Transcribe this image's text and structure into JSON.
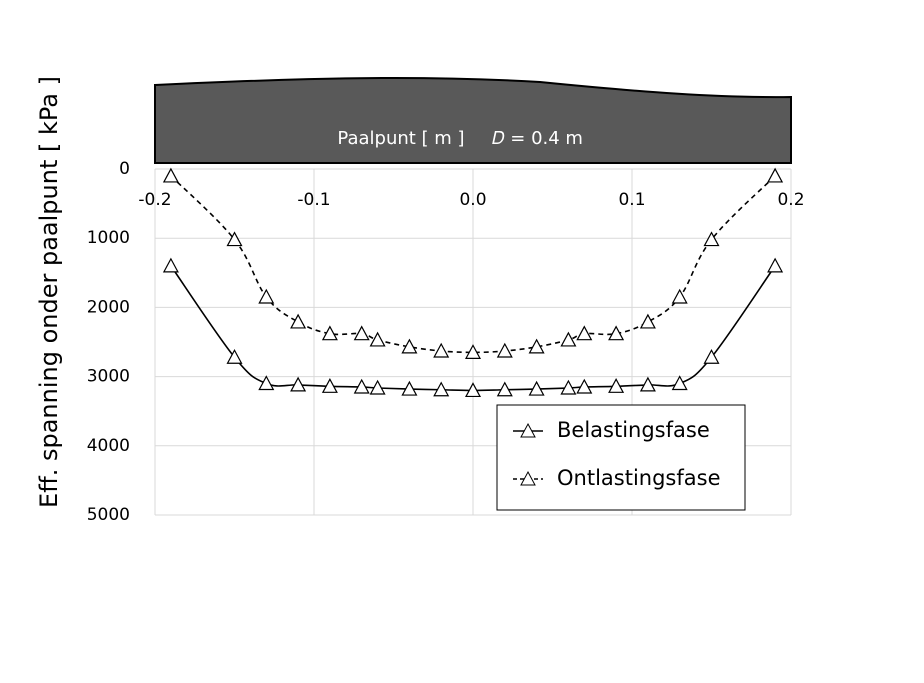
{
  "chart_data": {
    "type": "line",
    "x_label": "Paalpunt [ m ]",
    "annotation": "𝐷 = 0.4 m",
    "y_label": "Eff. spanning onder paalpunt  [ kPa ]",
    "x": [
      -0.19,
      -0.15,
      -0.13,
      -0.11,
      -0.09,
      -0.07,
      -0.06,
      -0.04,
      -0.02,
      0,
      0.02,
      0.04,
      0.06,
      0.07,
      0.09,
      0.11,
      0.13,
      0.15,
      0.19
    ],
    "series": [
      {
        "name": "Belastingsfase",
        "color": "#000000",
        "dashed": false,
        "values": [
          1400,
          2720,
          3100,
          3120,
          3140,
          3150,
          3165,
          3180,
          3190,
          3200,
          3190,
          3180,
          3165,
          3150,
          3140,
          3120,
          3100,
          2720,
          1400
        ]
      },
      {
        "name": "Ontlastingsfase",
        "color": "#000000",
        "dashed": true,
        "values": [
          100,
          1020,
          1850,
          2210,
          2380,
          2380,
          2470,
          2570,
          2630,
          2650,
          2630,
          2570,
          2470,
          2380,
          2380,
          2210,
          1850,
          1020,
          100
        ]
      }
    ],
    "xlim": [
      -0.2,
      0.2
    ],
    "xticks": [
      -0.2,
      -0.1,
      {
        "value": 0,
        "label": "0.0"
      },
      0.1,
      0.2
    ],
    "ylim": [
      0,
      5000
    ],
    "y_reversed": true,
    "yticks": [
      0,
      1000,
      2000,
      3000,
      4000,
      5000
    ],
    "grid": true,
    "legend": "lower right"
  }
}
